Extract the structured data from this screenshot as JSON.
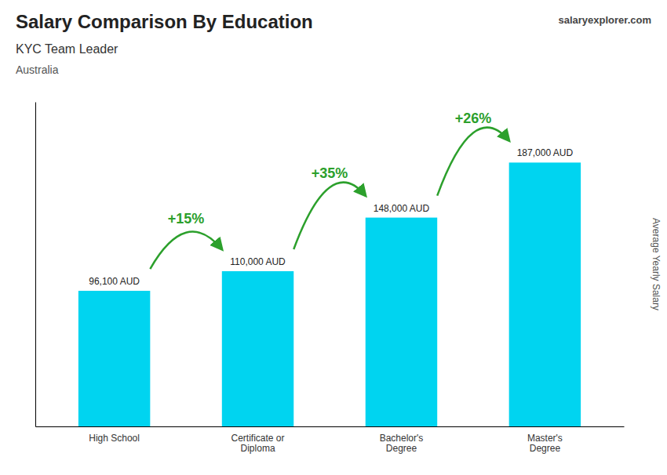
{
  "chart_data": {
    "type": "bar",
    "title": "Salary Comparison By Education",
    "subtitle": "KYC Team Leader",
    "country": "Australia",
    "credit": "salaryexplorer.com",
    "ylabel": "Average Yearly Salary",
    "categories": [
      "High School",
      "Certificate or\nDiploma",
      "Bachelor's\nDegree",
      "Master's\nDegree"
    ],
    "values": [
      96100,
      110000,
      148000,
      187000
    ],
    "value_labels": [
      "96,100 AUD",
      "110,000 AUD",
      "148,000 AUD",
      "187,000 AUD"
    ],
    "data_labels": true,
    "annotations": [
      "+15%",
      "+35%",
      "+26%"
    ],
    "color": "#00d4f0",
    "ylim": [
      0,
      230000
    ],
    "grid": false,
    "tick_labels": "x"
  }
}
